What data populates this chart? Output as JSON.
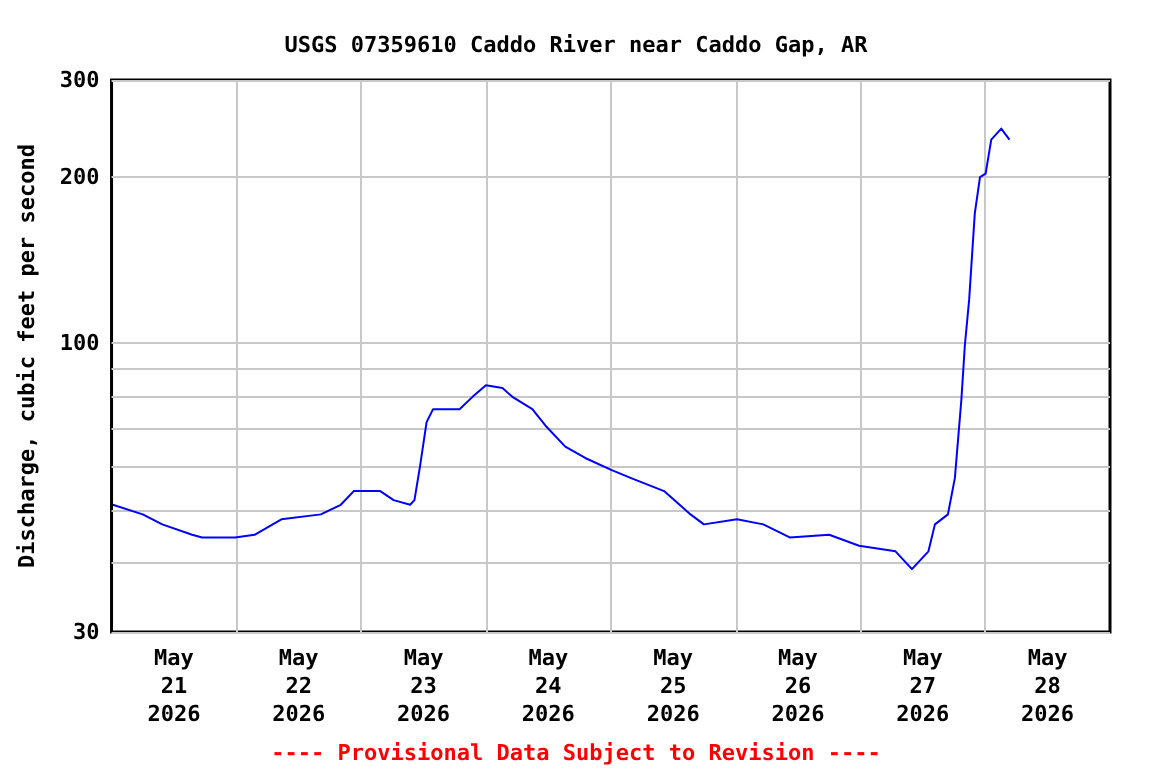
{
  "chart_data": {
    "type": "line",
    "title": "USGS 07359610 Caddo River near Caddo Gap, AR",
    "ylabel": "Discharge, cubic feet per second",
    "annotations": [
      "---- Provisional Data Subject to Revision ----"
    ],
    "log": "y",
    "grid": true,
    "marker": "none",
    "line_style": "solid",
    "xlim": [
      "2026-05-21T00:00",
      "2026-05-29T00:00"
    ],
    "xticks": [
      {
        "value": "2026-05-21T12:00",
        "label": "May\n21\n2026"
      },
      {
        "value": "2026-05-22T00:00",
        "label": null
      },
      {
        "value": "2026-05-22T12:00",
        "label": "May\n22\n2026"
      },
      {
        "value": "2026-05-23T00:00",
        "label": null
      },
      {
        "value": "2026-05-23T12:00",
        "label": "May\n23\n2026"
      },
      {
        "value": "2026-05-24T00:00",
        "label": null
      },
      {
        "value": "2026-05-24T12:00",
        "label": "May\n24\n2026"
      },
      {
        "value": "2026-05-25T00:00",
        "label": null
      },
      {
        "value": "2026-05-25T12:00",
        "label": "May\n25\n2026"
      },
      {
        "value": "2026-05-26T00:00",
        "label": null
      },
      {
        "value": "2026-05-26T12:00",
        "label": "May\n26\n2026"
      },
      {
        "value": "2026-05-27T00:00",
        "label": null
      },
      {
        "value": "2026-05-27T12:00",
        "label": "May\n27\n2026"
      },
      {
        "value": "2026-05-28T00:00",
        "label": null
      },
      {
        "value": "2026-05-28T12:00",
        "label": "May\n28\n2026"
      }
    ],
    "ylim": [
      30,
      300
    ],
    "yticks": [
      30,
      {
        "value": 40,
        "label": null
      },
      {
        "value": 50,
        "label": null
      },
      {
        "value": 60,
        "label": null
      },
      {
        "value": 70,
        "label": null
      },
      {
        "value": 80,
        "label": null
      },
      {
        "value": 90,
        "label": null
      },
      100,
      200,
      300
    ],
    "series": [
      {
        "color": "#0000ff",
        "x": [
          "2026-05-21T00:15",
          "2026-05-21T06:00",
          "2026-05-21T09:45",
          "2026-05-21T15:30",
          "2026-05-21T17:25",
          "2026-05-21T23:45",
          "2026-05-22T03:30",
          "2026-05-22T08:40",
          "2026-05-22T16:15",
          "2026-05-22T20:05",
          "2026-05-22T22:35",
          "2026-05-23T03:40",
          "2026-05-23T06:15",
          "2026-05-23T09:25",
          "2026-05-23T10:15",
          "2026-05-23T11:20",
          "2026-05-23T12:35",
          "2026-05-23T13:50",
          "2026-05-23T18:55",
          "2026-05-23T21:25",
          "2026-05-24T00:00",
          "2026-05-24T03:10",
          "2026-05-24T05:05",
          "2026-05-24T08:55",
          "2026-05-24T11:25",
          "2026-05-24T15:15",
          "2026-05-24T19:05",
          "2026-05-25T00:05",
          "2026-05-25T03:55",
          "2026-05-25T10:15",
          "2026-05-25T15:20",
          "2026-05-25T17:55",
          "2026-05-26T00:15",
          "2026-05-26T05:20",
          "2026-05-26T10:25",
          "2026-05-26T18:00",
          "2026-05-26T23:45",
          "2026-05-27T06:45",
          "2026-05-27T09:55",
          "2026-05-27T13:05",
          "2026-05-27T14:20",
          "2026-05-27T16:50",
          "2026-05-27T18:10",
          "2026-05-27T19:25",
          "2026-05-27T20:05",
          "2026-05-27T20:55",
          "2026-05-27T22:00",
          "2026-05-27T23:00",
          "2026-05-28T00:05",
          "2026-05-28T01:10",
          "2026-05-28T03:05",
          "2026-05-28T04:40"
        ],
        "values": [
          51,
          49,
          47,
          45,
          44.5,
          44.5,
          45,
          48,
          49,
          51,
          54,
          54,
          52,
          51,
          52,
          60,
          72,
          76,
          76,
          80,
          84,
          83,
          80,
          76,
          71,
          65,
          62,
          59,
          57,
          54,
          49,
          47,
          48,
          47,
          44.5,
          45,
          43,
          42,
          39,
          42,
          47,
          49,
          57,
          79,
          99,
          120,
          172,
          200,
          203,
          234,
          245,
          234
        ]
      }
    ]
  }
}
